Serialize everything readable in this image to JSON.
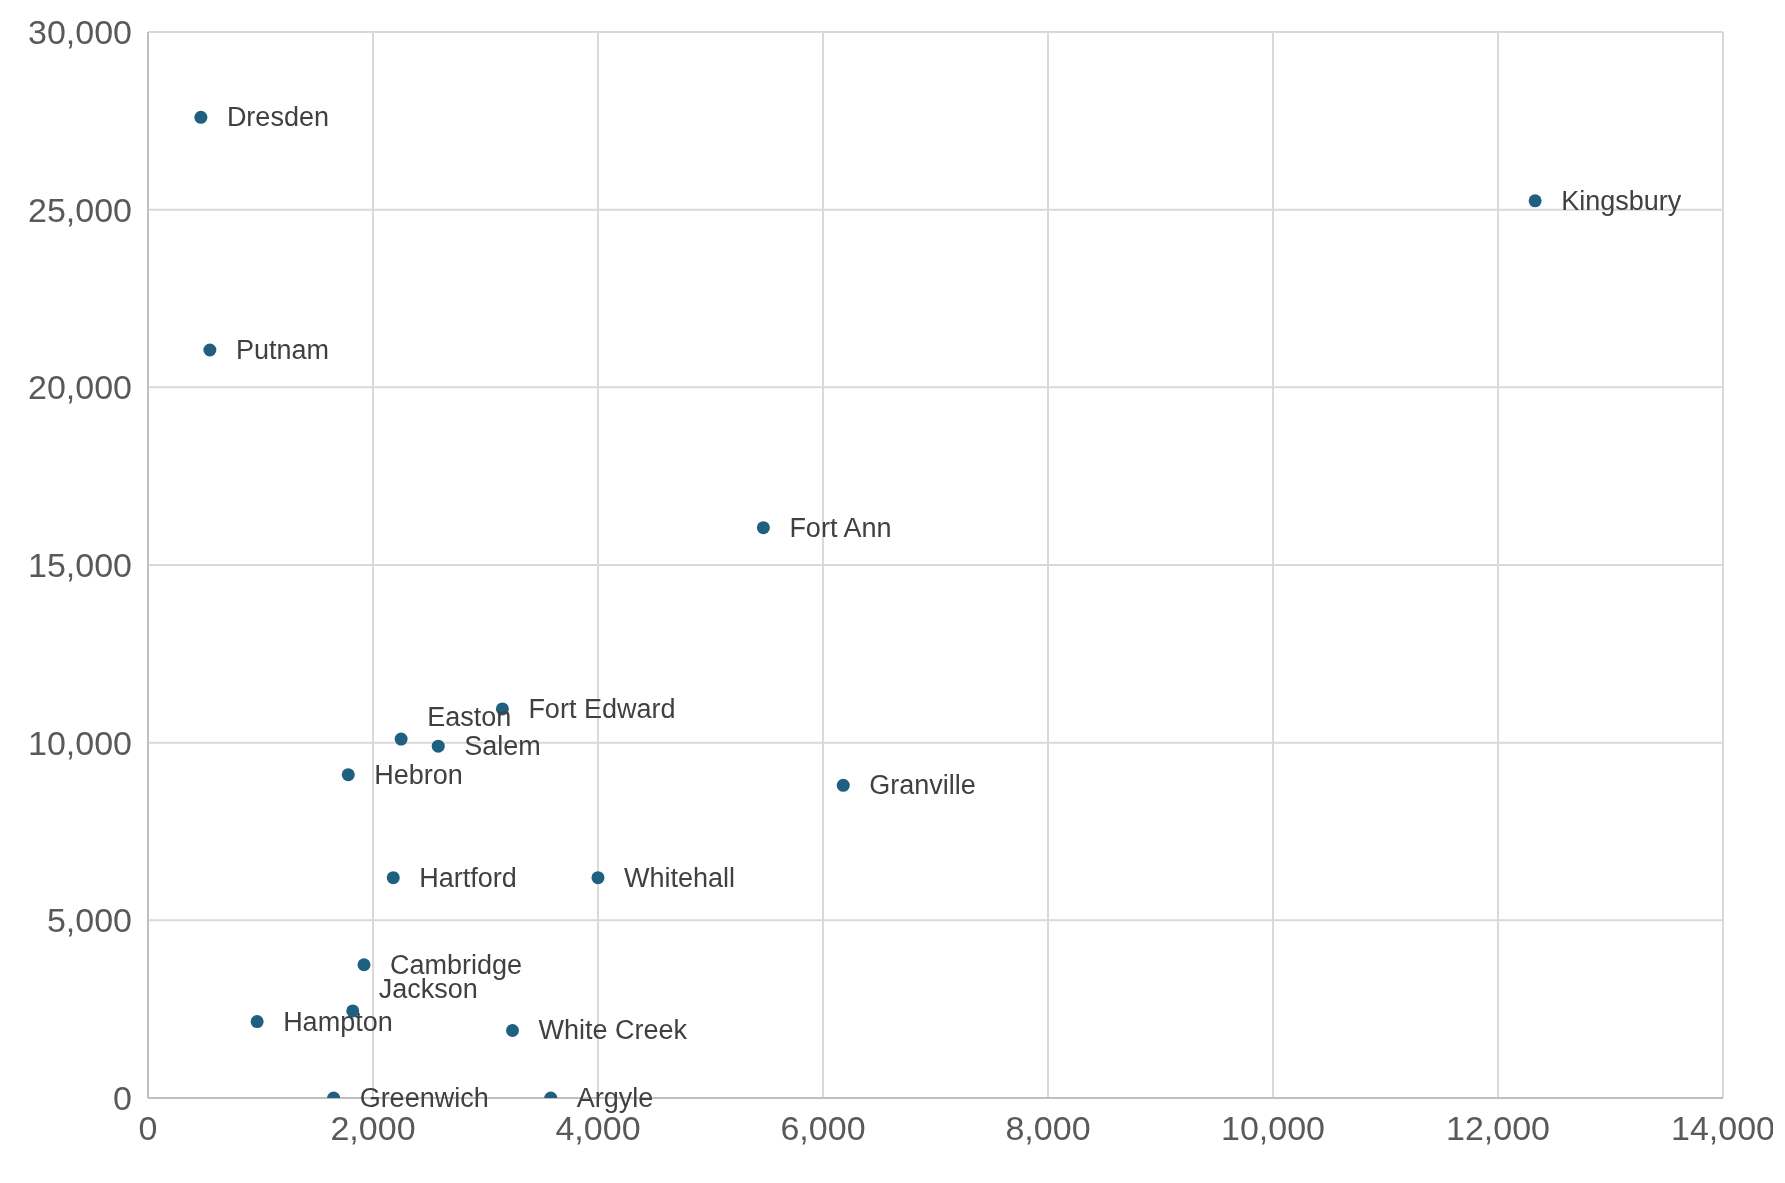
{
  "chart_data": {
    "type": "scatter",
    "x": [
      470,
      12330,
      550,
      5470,
      3150,
      2250,
      2580,
      1780,
      6180,
      2180,
      4000,
      1920,
      1820,
      970,
      3240,
      1650,
      3580
    ],
    "values": [
      27600,
      25250,
      21050,
      16050,
      10950,
      10100,
      9900,
      9100,
      8800,
      6200,
      6200,
      3750,
      2450,
      2150,
      1900,
      0,
      0
    ],
    "value_labels": [
      "Dresden",
      "Kingsbury",
      "Putnam",
      "Fort Ann",
      "Fort Edward",
      "Easton",
      "Salem",
      "Hebron",
      "Granville",
      "Hartford",
      "Whitehall",
      "Cambridge",
      "Jackson",
      "Hampton",
      "White Creek",
      "Greenwich",
      "Argyle"
    ],
    "color": "#1f5f7f",
    "marker": "circle",
    "grid": true,
    "xlim": [
      0,
      14000
    ],
    "xticks": [
      0,
      {
        "value": 2000,
        "label": "2,000"
      },
      {
        "value": 4000,
        "label": "4,000"
      },
      {
        "value": 6000,
        "label": "6,000"
      },
      {
        "value": 8000,
        "label": "8,000"
      },
      {
        "value": 10000,
        "label": "10,000"
      },
      {
        "value": 12000,
        "label": "12,000"
      },
      {
        "value": 14000,
        "label": "14,000"
      }
    ],
    "ylim": [
      0,
      30000
    ],
    "yticks": [
      0,
      {
        "value": 5000,
        "label": "5,000"
      },
      {
        "value": 10000,
        "label": "10,000"
      },
      {
        "value": 15000,
        "label": "15,000"
      },
      {
        "value": 20000,
        "label": "20,000"
      },
      {
        "value": 25000,
        "label": "25,000"
      },
      {
        "value": 30000,
        "label": "30,000"
      }
    ]
  }
}
